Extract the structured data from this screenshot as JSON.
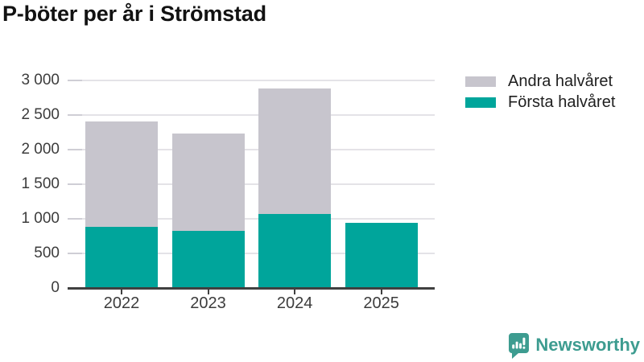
{
  "title": "P-böter per år i Strömstad",
  "legend": {
    "items": [
      {
        "label": "Andra halvåret",
        "color": "#c7c5cd"
      },
      {
        "label": "Första halvåret",
        "color": "#00a59b"
      }
    ]
  },
  "brand": {
    "name": "Newsworthy",
    "color": "#3d9c90",
    "icon": "newsworthy-bubble-chart-icon"
  },
  "colors": {
    "first_half": "#00a59b",
    "second_half": "#c7c5cd",
    "grid": "#e4e3e7",
    "axis": "#404040",
    "tick_text": "#3c3c3c",
    "title_text": "#121212"
  },
  "chart_data": {
    "type": "bar",
    "stacked": true,
    "title": "P-böter per år i Strömstad",
    "categories": [
      "2022",
      "2023",
      "2024",
      "2025"
    ],
    "series": [
      {
        "name": "Första halvåret",
        "color": "#00a59b",
        "values": [
          880,
          820,
          1065,
          940
        ]
      },
      {
        "name": "Andra halvåret",
        "color": "#c7c5cd",
        "values": [
          1530,
          1410,
          1815,
          0
        ]
      }
    ],
    "totals": [
      2410,
      2230,
      2880,
      940
    ],
    "xlabel": "",
    "ylabel": "",
    "ylim": [
      0,
      3000
    ],
    "ytick_step": 500,
    "ytick_labels": [
      "0",
      "500",
      "1 000",
      "1 500",
      "2 000",
      "2 500",
      "3 000"
    ],
    "grid": true,
    "legend_position": "top-right"
  }
}
